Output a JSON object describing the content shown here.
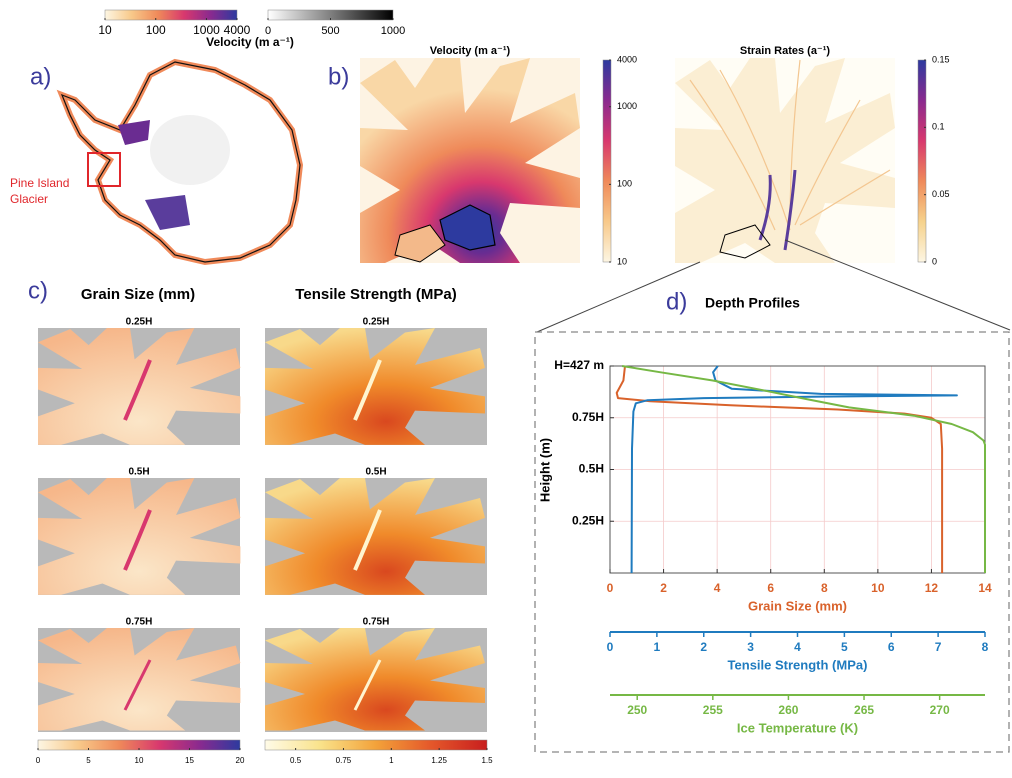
{
  "top_colorbars": {
    "title": "Velocity (m a⁻¹)",
    "colorbars": [
      {
        "lim": [
          10,
          4000
        ],
        "log": true,
        "ticks": [
          10,
          100,
          1000,
          4000
        ],
        "colors": [
          "#fdf6e3",
          "#f8c98a",
          "#ef8a5a",
          "#d8386e",
          "#8a2a8f",
          "#2d3a9f"
        ]
      },
      {
        "lim": [
          0,
          1000
        ],
        "log": false,
        "ticks": [
          0,
          500,
          1000
        ],
        "colors": [
          "#ffffff",
          "#000000"
        ]
      }
    ]
  },
  "panel_a": {
    "label": "a)",
    "annotation": [
      "Pine Island",
      "Glacier"
    ]
  },
  "panel_b": {
    "label": "b)",
    "maps": [
      {
        "title": "Velocity (m a⁻¹)",
        "colorbar": {
          "lim": [
            10,
            4000
          ],
          "log": true,
          "ticks": [
            10,
            100,
            1000,
            4000
          ],
          "colors": [
            "#fdf6e3",
            "#f8c98a",
            "#ef8a5a",
            "#d8386e",
            "#8a2a8f",
            "#2d3a9f"
          ]
        }
      },
      {
        "title": "Strain Rates (a⁻¹)",
        "colorbar": {
          "lim": [
            0,
            0.15
          ],
          "log": false,
          "ticks": [
            0,
            0.05,
            0.1,
            0.15
          ],
          "colors": [
            "#fdf6e3",
            "#f6d28c",
            "#ef8a5a",
            "#d8386e",
            "#8a2a8f",
            "#2d3a9f"
          ]
        }
      }
    ]
  },
  "panel_c": {
    "label": "c)",
    "columns": [
      {
        "title": "Grain Size  (mm)",
        "rows": [
          "0.25H",
          "0.5H",
          "0.75H"
        ],
        "colorbar": {
          "lim": [
            0,
            20
          ],
          "log": false,
          "ticks": [
            0,
            5,
            10,
            15,
            20
          ],
          "colors": [
            "#fdf6e3",
            "#f8c98a",
            "#ef8a5a",
            "#d8386e",
            "#8a2a8f",
            "#2d3a9f"
          ]
        }
      },
      {
        "title": "Tensile Strength (MPa)",
        "rows": [
          "0.25H",
          "0.5H",
          "0.75H"
        ],
        "colorbar": {
          "lim": [
            0.34,
            1.5
          ],
          "log": false,
          "ticks": [
            0.5,
            0.75,
            1,
            1.25,
            1.5
          ],
          "colors": [
            "#fffbe8",
            "#f9e28a",
            "#f3a23a",
            "#e4572a",
            "#c81e1e"
          ]
        }
      }
    ]
  },
  "panel_d_label": "d)",
  "chart_data": {
    "type": "line",
    "title": "Depth Profiles",
    "ylabel": "Height (m)",
    "ylim": [
      0,
      1
    ],
    "yticks": [
      {
        "value": 0.25,
        "label": "0.25H"
      },
      {
        "value": 0.5,
        "label": "0.5H"
      },
      {
        "value": 0.75,
        "label": "0.75H"
      },
      {
        "value": 1,
        "label": "H=427 m"
      }
    ],
    "grid": true,
    "xaxes": [
      {
        "label": "Grain Size (mm)",
        "lim": [
          0,
          14
        ],
        "ticks": [
          0,
          2,
          4,
          6,
          8,
          10,
          12,
          14
        ],
        "color": "#d9622b",
        "heights": [
          1,
          0.93,
          0.87,
          0.845,
          0.83,
          0.81,
          0.79,
          0.77,
          0.75,
          0.72,
          0.6,
          0
        ],
        "values": [
          0.56,
          0.5,
          0.25,
          0.3,
          1.5,
          4.5,
          8.5,
          11,
          12,
          12.35,
          12.4,
          12.4
        ]
      },
      {
        "label": "Tensile Strength (MPa)",
        "lim": [
          0,
          8
        ],
        "ticks": [
          0,
          1,
          2,
          3,
          4,
          5,
          6,
          7,
          8
        ],
        "color": "#1f7bbf",
        "heights": [
          1,
          0.97,
          0.93,
          0.89,
          0.865,
          0.858,
          0.852,
          0.845,
          0.835,
          0.82,
          0.78,
          0.6,
          0
        ],
        "values": [
          2.3,
          2.2,
          2.25,
          2.6,
          4.5,
          7.4,
          4.5,
          2,
          0.8,
          0.55,
          0.5,
          0.47,
          0.46
        ]
      },
      {
        "label": "Ice Temperature (K)",
        "lim": [
          248.2,
          273
        ],
        "ticks": [
          250,
          255,
          260,
          265,
          270
        ],
        "color": "#76b845",
        "heights": [
          1,
          0.97,
          0.93,
          0.88,
          0.84,
          0.8,
          0.76,
          0.72,
          0.68,
          0.64,
          0.62,
          0
        ],
        "values": [
          249,
          251.5,
          255,
          258.5,
          261.2,
          264,
          268.3,
          270.8,
          272.2,
          272.9,
          273,
          273
        ]
      }
    ]
  }
}
